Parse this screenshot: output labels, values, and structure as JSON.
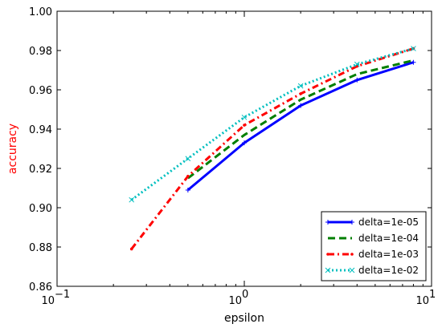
{
  "chart_data": {
    "type": "line",
    "x_scale": "log",
    "xlabel": "epsilon",
    "ylabel": "accuracy",
    "ylabel_color": "#ff0000",
    "xlim": [
      0.1,
      10
    ],
    "ylim": [
      0.86,
      1.0
    ],
    "x_ticks": [
      {
        "value": 0.1,
        "base": "10",
        "exp": "−1"
      },
      {
        "value": 1,
        "base": "10",
        "exp": "0"
      },
      {
        "value": 10,
        "base": "10",
        "exp": "1"
      }
    ],
    "y_ticks": [
      {
        "value": 0.86,
        "label": "0.86"
      },
      {
        "value": 0.88,
        "label": "0.88"
      },
      {
        "value": 0.9,
        "label": "0.90"
      },
      {
        "value": 0.92,
        "label": "0.92"
      },
      {
        "value": 0.94,
        "label": "0.94"
      },
      {
        "value": 0.96,
        "label": "0.96"
      },
      {
        "value": 0.98,
        "label": "0.98"
      },
      {
        "value": 1.0,
        "label": "1.00"
      }
    ],
    "grid": false,
    "legend_position": "lower-right",
    "series": [
      {
        "name": "delta=1e-05",
        "color": "#0000ff",
        "style": "solid",
        "marker": "plus",
        "x": [
          0.5,
          1,
          2,
          4,
          8
        ],
        "y": [
          0.909,
          0.933,
          0.952,
          0.965,
          0.974
        ]
      },
      {
        "name": "delta=1e-04",
        "color": "#007f00",
        "style": "dashed",
        "marker": "none",
        "x": [
          0.5,
          1,
          2,
          4,
          8
        ],
        "y": [
          0.915,
          0.937,
          0.955,
          0.968,
          0.975
        ]
      },
      {
        "name": "delta=1e-03",
        "color": "#ff0000",
        "style": "dashdot",
        "marker": "dot",
        "x": [
          0.25,
          0.5,
          1,
          2,
          4,
          8
        ],
        "y": [
          0.879,
          0.916,
          0.942,
          0.958,
          0.972,
          0.981
        ]
      },
      {
        "name": "delta=1e-02",
        "color": "#00bfbf",
        "style": "dotted",
        "marker": "x",
        "x": [
          0.25,
          0.5,
          1,
          2,
          4,
          8
        ],
        "y": [
          0.904,
          0.925,
          0.946,
          0.962,
          0.973,
          0.981
        ]
      }
    ]
  }
}
